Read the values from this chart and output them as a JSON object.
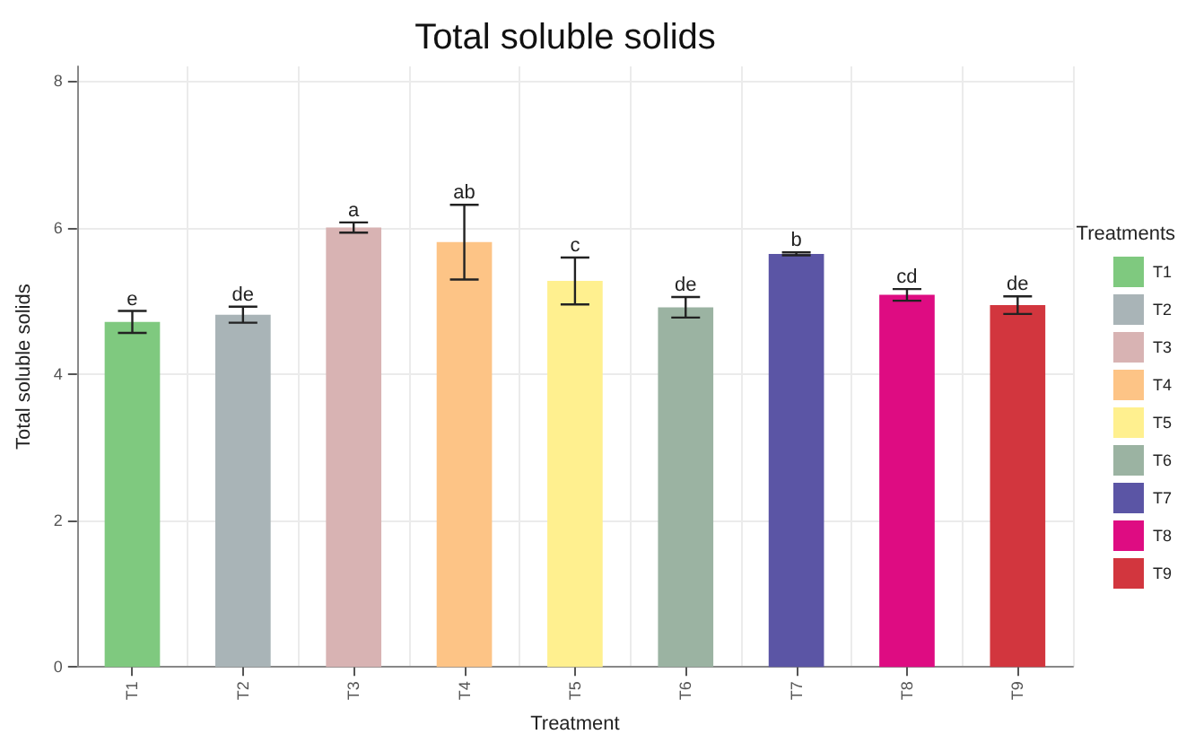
{
  "chart_data": {
    "type": "bar",
    "title": "Total soluble solids",
    "xlabel": "Treatment",
    "ylabel": "Total soluble solids",
    "legend_title": "Treatments",
    "legend": "right",
    "grid": true,
    "categories": [
      "T1",
      "T2",
      "T3",
      "T4",
      "T5",
      "T6",
      "T7",
      "T8",
      "T9"
    ],
    "series": [
      {
        "name": "T1",
        "color": "#7fc97f",
        "values": [
          4.71,
          null,
          null,
          null,
          null,
          null,
          null,
          null,
          null
        ],
        "errors": [
          0.15,
          null,
          null,
          null,
          null,
          null,
          null,
          null,
          null
        ]
      },
      {
        "name": "T2",
        "color": "#a9b4b7",
        "values": [
          null,
          4.81,
          null,
          null,
          null,
          null,
          null,
          null,
          null
        ],
        "errors": [
          null,
          0.11,
          null,
          null,
          null,
          null,
          null,
          null,
          null
        ]
      },
      {
        "name": "T3",
        "color": "#d8b3b3",
        "values": [
          null,
          null,
          6.0,
          null,
          null,
          null,
          null,
          null,
          null
        ],
        "errors": [
          null,
          null,
          0.07,
          null,
          null,
          null,
          null,
          null,
          null
        ]
      },
      {
        "name": "T4",
        "color": "#fdc486",
        "values": [
          null,
          null,
          null,
          5.8,
          null,
          null,
          null,
          null,
          null
        ],
        "errors": [
          null,
          null,
          null,
          0.51,
          null,
          null,
          null,
          null,
          null
        ]
      },
      {
        "name": "T5",
        "color": "#fff08f",
        "values": [
          null,
          null,
          null,
          null,
          5.27,
          null,
          null,
          null,
          null
        ],
        "errors": [
          null,
          null,
          null,
          null,
          0.32,
          null,
          null,
          null,
          null
        ]
      },
      {
        "name": "T6",
        "color": "#9bb3a2",
        "values": [
          null,
          null,
          null,
          null,
          null,
          4.91,
          null,
          null,
          null
        ],
        "errors": [
          null,
          null,
          null,
          null,
          null,
          0.14,
          null,
          null,
          null
        ]
      },
      {
        "name": "T7",
        "color": "#5b55a5",
        "values": [
          null,
          null,
          null,
          null,
          null,
          null,
          5.64,
          null,
          null
        ],
        "errors": [
          null,
          null,
          null,
          null,
          null,
          null,
          0.02,
          null,
          null
        ]
      },
      {
        "name": "T8",
        "color": "#de0c82",
        "values": [
          null,
          null,
          null,
          null,
          null,
          null,
          null,
          5.08,
          null
        ],
        "errors": [
          null,
          null,
          null,
          null,
          null,
          null,
          null,
          0.08,
          null
        ]
      },
      {
        "name": "T9",
        "color": "#d2363e",
        "values": [
          null,
          null,
          null,
          null,
          null,
          null,
          null,
          null,
          4.94
        ],
        "errors": [
          null,
          null,
          null,
          null,
          null,
          null,
          null,
          null,
          0.12
        ]
      }
    ],
    "ylim": [
      0,
      8.2
    ],
    "yticks": [
      0,
      2,
      4,
      6,
      8
    ],
    "annotations": [
      {
        "text": "e",
        "x": "T1",
        "y": 4.86
      },
      {
        "text": "de",
        "x": "T2",
        "y": 4.92
      },
      {
        "text": "a",
        "x": "T3",
        "y": 6.07
      },
      {
        "text": "ab",
        "x": "T4",
        "y": 6.31
      },
      {
        "text": "c",
        "x": "T5",
        "y": 5.59
      },
      {
        "text": "de",
        "x": "T6",
        "y": 5.05
      },
      {
        "text": "b",
        "x": "T7",
        "y": 5.66
      },
      {
        "text": "cd",
        "x": "T8",
        "y": 5.16
      },
      {
        "text": "de",
        "x": "T9",
        "y": 5.06
      }
    ]
  }
}
